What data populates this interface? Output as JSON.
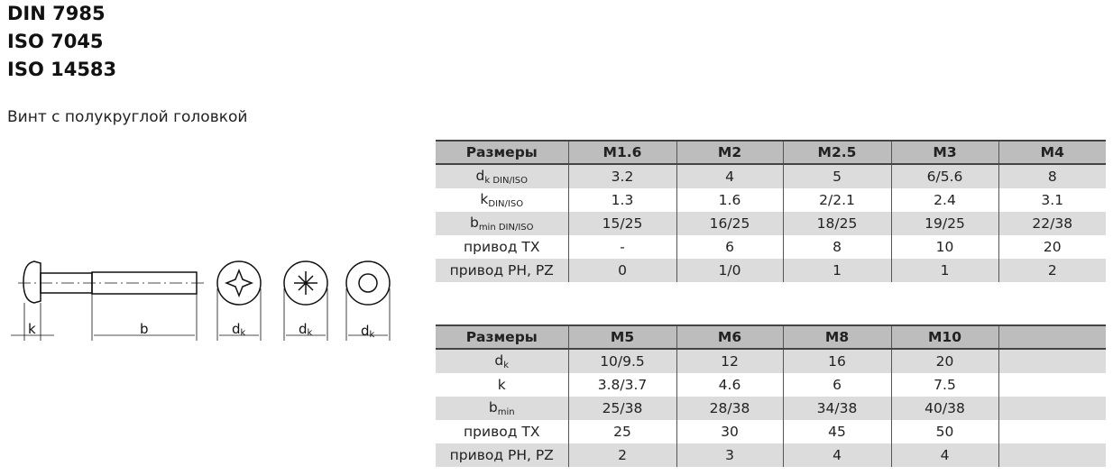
{
  "titles": [
    "DIN 7985",
    "ISO 7045",
    "ISO 14583"
  ],
  "subtitle": "Винт с полукруглой головкой",
  "drawing": {
    "labels": {
      "k": "k",
      "b": "b",
      "dk": "d",
      "dk_sub": "k"
    }
  },
  "table1": {
    "header": [
      "Размеры",
      "M1.6",
      "M2",
      "M2.5",
      "M3",
      "M4"
    ],
    "rows": [
      {
        "label": "d",
        "sub": "k DIN/ISO",
        "values": [
          "3.2",
          "4",
          "5",
          "6/5.6",
          "8"
        ]
      },
      {
        "label": "k",
        "sub": "DIN/ISO",
        "values": [
          "1.3",
          "1.6",
          "2/2.1",
          "2.4",
          "3.1"
        ]
      },
      {
        "label": "b",
        "sub": "min DIN/ISO",
        "values": [
          "15/25",
          "16/25",
          "18/25",
          "19/25",
          "22/38"
        ]
      },
      {
        "label": "привод TX",
        "sub": "",
        "values": [
          "-",
          "6",
          "8",
          "10",
          "20"
        ]
      },
      {
        "label": "привод PH, PZ",
        "sub": "",
        "values": [
          "0",
          "1/0",
          "1",
          "1",
          "2"
        ]
      }
    ]
  },
  "table2": {
    "header": [
      "Размеры",
      "M5",
      "M6",
      "M8",
      "M10",
      ""
    ],
    "rows": [
      {
        "label": "d",
        "sub": "k",
        "values": [
          "10/9.5",
          "12",
          "16",
          "20",
          ""
        ]
      },
      {
        "label": "k",
        "sub": "",
        "values": [
          "3.8/3.7",
          "4.6",
          "6",
          "7.5",
          ""
        ]
      },
      {
        "label": "b",
        "sub": "min",
        "values": [
          "25/38",
          "28/38",
          "34/38",
          "40/38",
          ""
        ]
      },
      {
        "label": "привод TX",
        "sub": "",
        "values": [
          "25",
          "30",
          "45",
          "50",
          ""
        ]
      },
      {
        "label": "привод PH, PZ",
        "sub": "",
        "values": [
          "2",
          "3",
          "4",
          "4",
          ""
        ]
      }
    ]
  }
}
